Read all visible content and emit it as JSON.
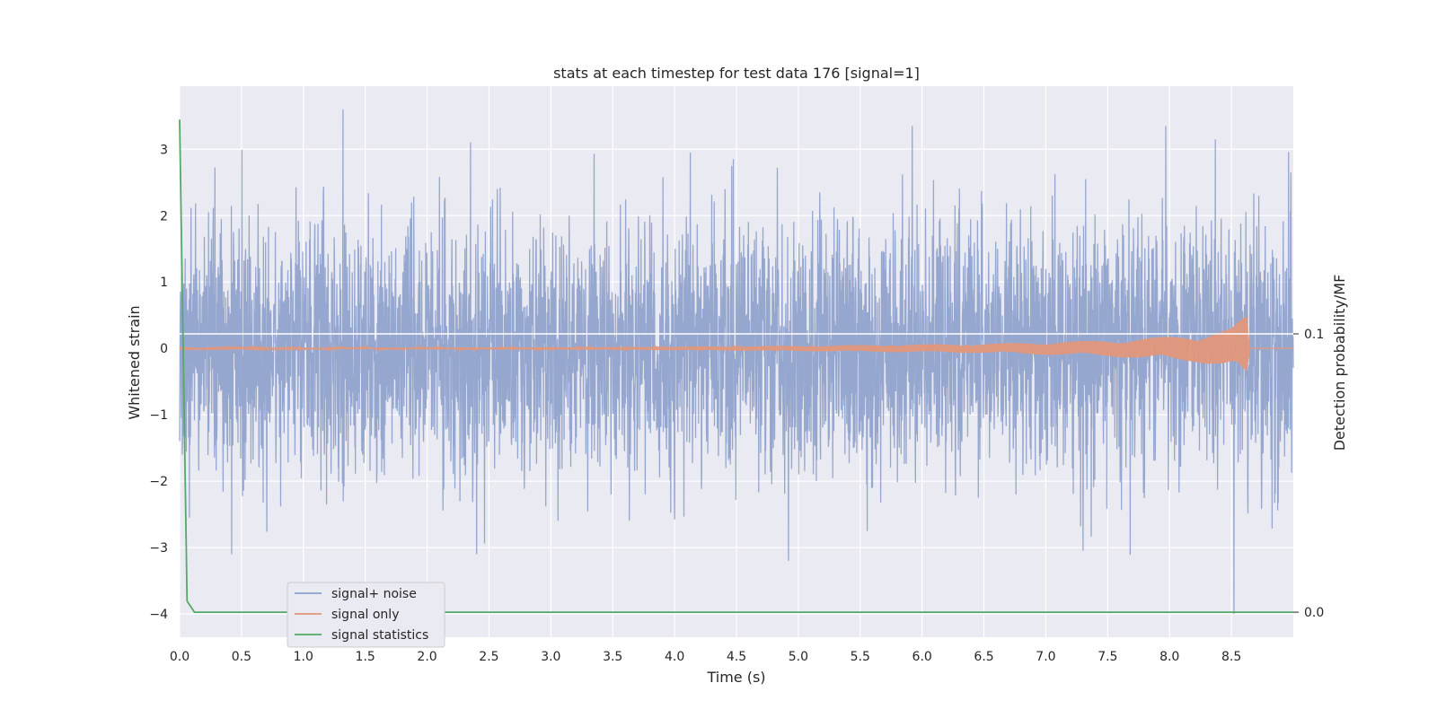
{
  "chart_data": {
    "type": "line",
    "title": "stats at each timestep for test data 176 [signal=1]",
    "xlabel": "Time (s)",
    "ylabel": "Whitened strain",
    "y2label": "Detection probability/MF",
    "xlim": [
      0.0,
      9.0
    ],
    "ylim": [
      -4.35,
      3.95
    ],
    "y2lim": [
      -0.009,
      0.189
    ],
    "x_ticks": [
      0.0,
      0.5,
      1.0,
      1.5,
      2.0,
      2.5,
      3.0,
      3.5,
      4.0,
      4.5,
      5.0,
      5.5,
      6.0,
      6.5,
      7.0,
      7.5,
      8.0,
      8.5
    ],
    "x_tick_labels": [
      "0.0",
      "0.5",
      "1.0",
      "1.5",
      "2.0",
      "2.5",
      "3.0",
      "3.5",
      "4.0",
      "4.5",
      "5.0",
      "5.5",
      "6.0",
      "6.5",
      "7.0",
      "7.5",
      "8.0",
      "8.5"
    ],
    "y_ticks": [
      3,
      2,
      1,
      0,
      -1,
      -2,
      -3,
      -4
    ],
    "y_tick_labels": [
      "3",
      "2",
      "1",
      "0",
      "−1",
      "−2",
      "−3",
      "−4"
    ],
    "y2_ticks": [
      0.1,
      0.0
    ],
    "y2_tick_labels": [
      "0.1",
      "0.0"
    ],
    "grid": true,
    "legend_position": "lower-left",
    "series": [
      {
        "name": "signal+ noise",
        "color": "#8da0cb",
        "axis": "left",
        "kind": "noise",
        "x_range": [
          0.0,
          9.0
        ],
        "std": 0.95,
        "notable_peaks": [
          {
            "x": 0.08,
            "y": -2.55
          },
          {
            "x": 0.42,
            "y": -3.1
          },
          {
            "x": 1.32,
            "y": 3.6
          },
          {
            "x": 2.35,
            "y": 3.1
          },
          {
            "x": 2.4,
            "y": -3.1
          },
          {
            "x": 4.92,
            "y": -3.2
          },
          {
            "x": 5.92,
            "y": 3.35
          },
          {
            "x": 7.3,
            "y": -3.05
          },
          {
            "x": 7.97,
            "y": 3.35
          },
          {
            "x": 8.37,
            "y": 3.15
          },
          {
            "x": 8.52,
            "y": -4.0
          },
          {
            "x": 8.98,
            "y": 2.65
          }
        ]
      },
      {
        "name": "signal only",
        "color": "#e1977a",
        "axis": "left",
        "kind": "chirp",
        "x_range": [
          0.0,
          8.65
        ],
        "envelope": [
          {
            "x": 0.0,
            "amp": 0.005
          },
          {
            "x": 3.5,
            "amp": 0.02
          },
          {
            "x": 5.0,
            "amp": 0.04
          },
          {
            "x": 6.5,
            "amp": 0.07
          },
          {
            "x": 7.5,
            "amp": 0.12
          },
          {
            "x": 8.2,
            "amp": 0.2
          },
          {
            "x": 8.5,
            "amp": 0.3
          },
          {
            "x": 8.62,
            "amp": 0.5
          },
          {
            "x": 8.65,
            "amp": 0.0
          }
        ]
      },
      {
        "name": "signal statistics",
        "color": "#55a868",
        "axis": "right",
        "x": [
          0.0,
          0.06,
          0.12,
          0.2,
          9.0
        ],
        "values": [
          0.177,
          0.004,
          0.0,
          0.0,
          0.0
        ]
      }
    ],
    "horizontal_line": {
      "axis": "right",
      "y": 0.1,
      "color": "#ffffff"
    }
  }
}
